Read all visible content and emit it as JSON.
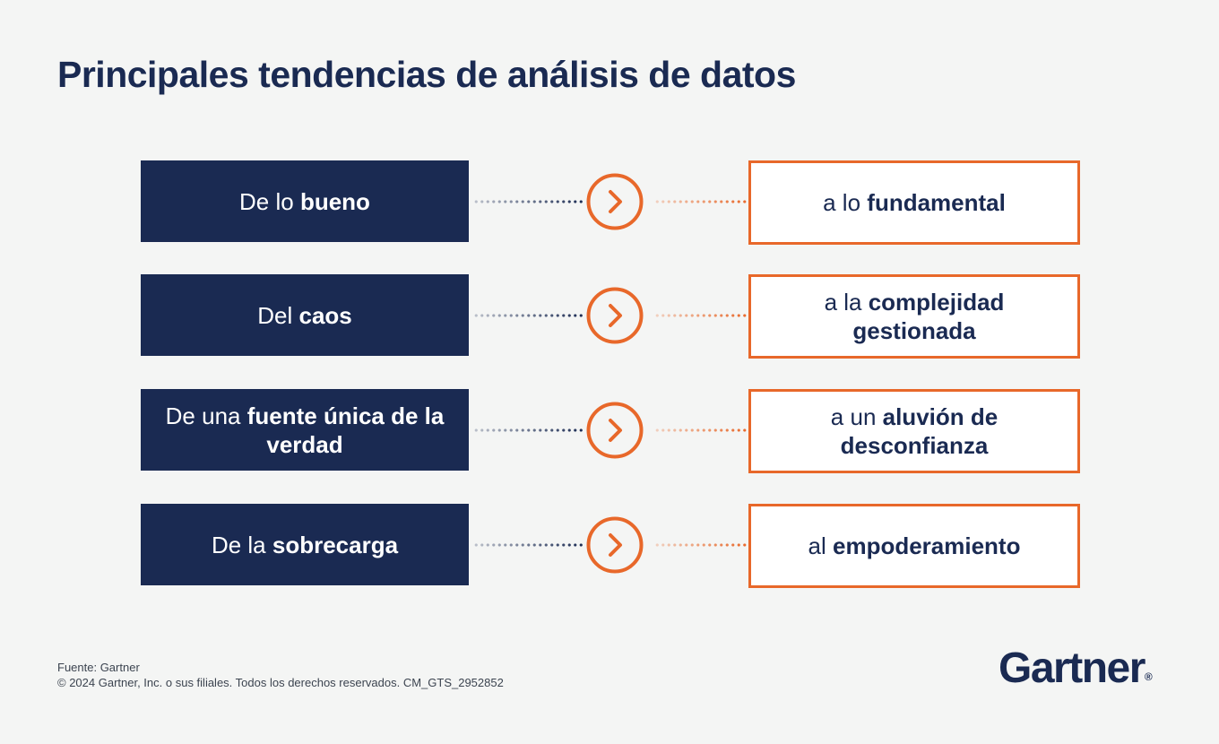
{
  "title": "Principales tendencias de análisis de datos",
  "rows": [
    {
      "from": [
        {
          "text": "De lo ",
          "bold": false
        },
        {
          "text": "bueno",
          "bold": true
        }
      ],
      "to": [
        {
          "text": "a lo ",
          "bold": false
        },
        {
          "text": "fundamental",
          "bold": true
        }
      ]
    },
    {
      "from": [
        {
          "text": "Del ",
          "bold": false
        },
        {
          "text": "caos",
          "bold": true
        }
      ],
      "to": [
        {
          "text": "a la ",
          "bold": false
        },
        {
          "text": "complejidad gestionada",
          "bold": true
        }
      ]
    },
    {
      "from": [
        {
          "text": "De una ",
          "bold": false
        },
        {
          "text": "fuente única de la verdad",
          "bold": true
        }
      ],
      "to": [
        {
          "text": "a un ",
          "bold": false
        },
        {
          "text": "aluvión de desconfianza",
          "bold": true
        }
      ]
    },
    {
      "from": [
        {
          "text": "De la ",
          "bold": false
        },
        {
          "text": "sobrecarga",
          "bold": true
        }
      ],
      "to": [
        {
          "text": "al ",
          "bold": false
        },
        {
          "text": "empoderamiento",
          "bold": true
        }
      ]
    }
  ],
  "arrow_icon": "chevron-right-circle-icon",
  "colors": {
    "navy": "#1a2a52",
    "orange": "#e8682a",
    "background": "#f4f5f4"
  },
  "footer": {
    "source": "Fuente: Gartner",
    "copyright": "© 2024 Gartner, Inc. o sus filiales. Todos los derechos reservados. CM_GTS_2952852"
  },
  "logo": {
    "text": "Gartner",
    "mark": "®"
  }
}
